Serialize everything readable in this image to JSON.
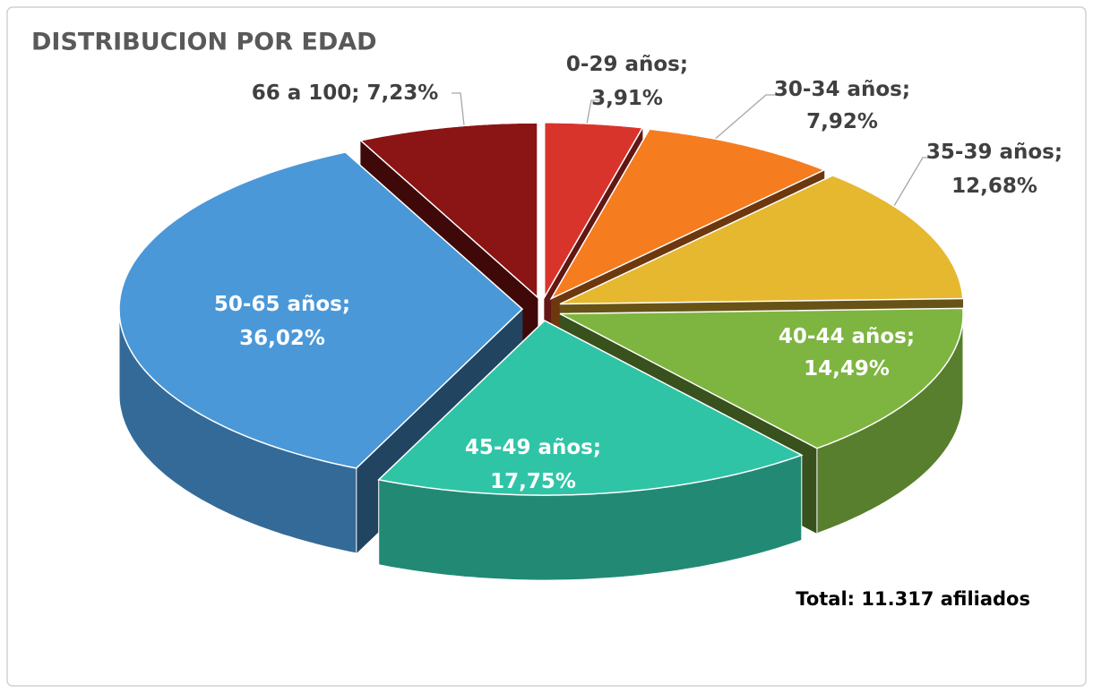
{
  "chart_data": {
    "type": "pie",
    "title": "DISTRIBUCION POR EDAD",
    "categories": [
      "0-29 años;",
      "30-34 años;",
      "35-39 años;",
      "40-44 años;",
      "45-49 años;",
      "50-65 años;",
      "66 a 100;"
    ],
    "values": [
      3.91,
      7.92,
      12.68,
      14.49,
      17.75,
      36.02,
      7.23
    ],
    "value_labels": [
      "3,91%",
      "7,92%",
      "12,68%",
      "14,49%",
      "17,75%",
      "36,02%",
      "7,23%"
    ],
    "colors": [
      "#d9342b",
      "#f57c1f",
      "#e6b830",
      "#7db540",
      "#30c4a6",
      "#4a98d8",
      "#8b1414"
    ],
    "annotation": "Total: 11.317 afiliados"
  }
}
